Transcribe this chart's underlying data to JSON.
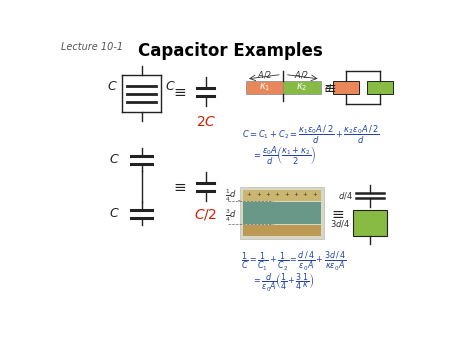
{
  "title": "Capacitor Examples",
  "lecture_label": "Lecture 10-1",
  "bg_color": "#ffffff",
  "title_color": "#000000",
  "red_color": "#cc2200",
  "dark_color": "#222222",
  "orange_color": "#e8875a",
  "green_color": "#88bb44",
  "formula_color": "#2244aa",
  "fig_w": 4.5,
  "fig_h": 3.38,
  "dpi": 100
}
